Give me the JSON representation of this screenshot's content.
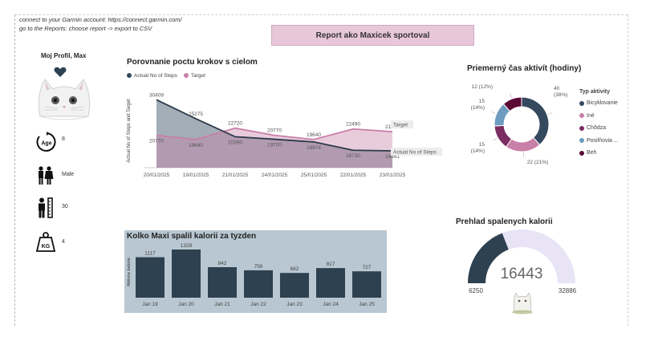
{
  "notes": [
    "connect to your Garmin account: https://connect.garmin.com/",
    "go to the Reports: choose report -> export to CSV"
  ],
  "banner": "Report ako Maxicek sportoval",
  "profile": {
    "title": "Moj Profil, Max",
    "stats": [
      {
        "icon": "age-icon",
        "label": "Age",
        "value": "8"
      },
      {
        "icon": "gender-icon",
        "value": "Male"
      },
      {
        "icon": "height-icon",
        "value": "30"
      },
      {
        "icon": "weight-icon",
        "label": "KG",
        "value": "4"
      }
    ]
  },
  "colors": {
    "actual": "#34495e",
    "target": "#c87fa8",
    "bar": "#2e4150",
    "donut_bike": "#34495e",
    "donut_ine": "#c87fa8",
    "donut_chodza": "#7b2d62",
    "donut_posil": "#6d9cc0",
    "donut_beh": "#5c0a35",
    "gauge_fill": "#2e4150",
    "gauge_rest": "#e8e4f6"
  },
  "steps": {
    "title": "Porovnanie poctu krokov s cielom",
    "legend_actual": "Actual No of Steps",
    "legend_target": "Target",
    "end_label_target": "Target",
    "end_label_actual": "Actual No of Steps",
    "ylabel": "Actual No of Steps and Target"
  },
  "calories": {
    "title": "Kolko Maxi spalil kalorii za tyzden",
    "ylabel": "Aktivne kalorie"
  },
  "donut": {
    "title": "Priemerný čas aktivít (hodiny)",
    "legend_title": "Typ aktivity",
    "labels": [
      {
        "line1": "40",
        "line2": "(38%)"
      },
      {
        "line1": "22 (21%)",
        "line2": ""
      },
      {
        "line1": "15",
        "line2": "(14%)"
      },
      {
        "line1": "15",
        "line2": "(14%)"
      },
      {
        "line1": "12 (12%)",
        "line2": ""
      }
    ]
  },
  "gauge": {
    "title": "Prehlad spalenych kalorii",
    "value_label": "16443",
    "min_label": "6250",
    "max_label": "32886"
  },
  "chart_data": [
    {
      "type": "area",
      "title": "Porovnanie poctu krokov s cielom",
      "ylabel": "Actual No of Steps and Target",
      "categories": [
        "20/01/2025",
        "19/01/2025",
        "21/01/2025",
        "24/01/2025",
        "25/01/2025",
        "22/01/2025",
        "23/01/2025"
      ],
      "series": [
        {
          "name": "Actual No of Steps",
          "values": [
            30409,
            25275,
            20390,
            19700,
            18974,
            16730,
            16561
          ],
          "labels": [
            "30409",
            "25275",
            "20390",
            "19700",
            "18974",
            "16730",
            "16561"
          ]
        },
        {
          "name": "Target",
          "values": [
            20770,
            19640,
            22720,
            20770,
            19640,
            22490,
            21740
          ],
          "labels": [
            "20770",
            "19640",
            "22720",
            "20770",
            "19640",
            "22490",
            "21740"
          ]
        }
      ],
      "ylim": [
        12000,
        32000
      ],
      "legend": "top-left"
    },
    {
      "type": "bar",
      "title": "Kolko Maxi spalil kalorii za tyzden",
      "ylabel": "Aktivne kalorie",
      "categories": [
        "Jan 19",
        "Jan 20",
        "Jan 21",
        "Jan 22",
        "Jan 23",
        "Jan 24",
        "Jan 25"
      ],
      "values": [
        1117,
        1329,
        842,
        756,
        682,
        817,
        727
      ],
      "ylim": [
        0,
        1500
      ]
    },
    {
      "type": "pie",
      "title": "Priemerný čas aktivít (hodiny)",
      "legend_title": "Typ aktivity",
      "categories": [
        "Bicyklovanie",
        "Iné",
        "Chôdza",
        "Posilňovia ...",
        "Beh"
      ],
      "values": [
        40,
        22,
        15,
        15,
        12
      ],
      "legend": "right"
    },
    {
      "type": "gauge",
      "title": "Prehlad spalenych kalorii",
      "value": 16443,
      "min": 6250,
      "max": 32886
    }
  ]
}
